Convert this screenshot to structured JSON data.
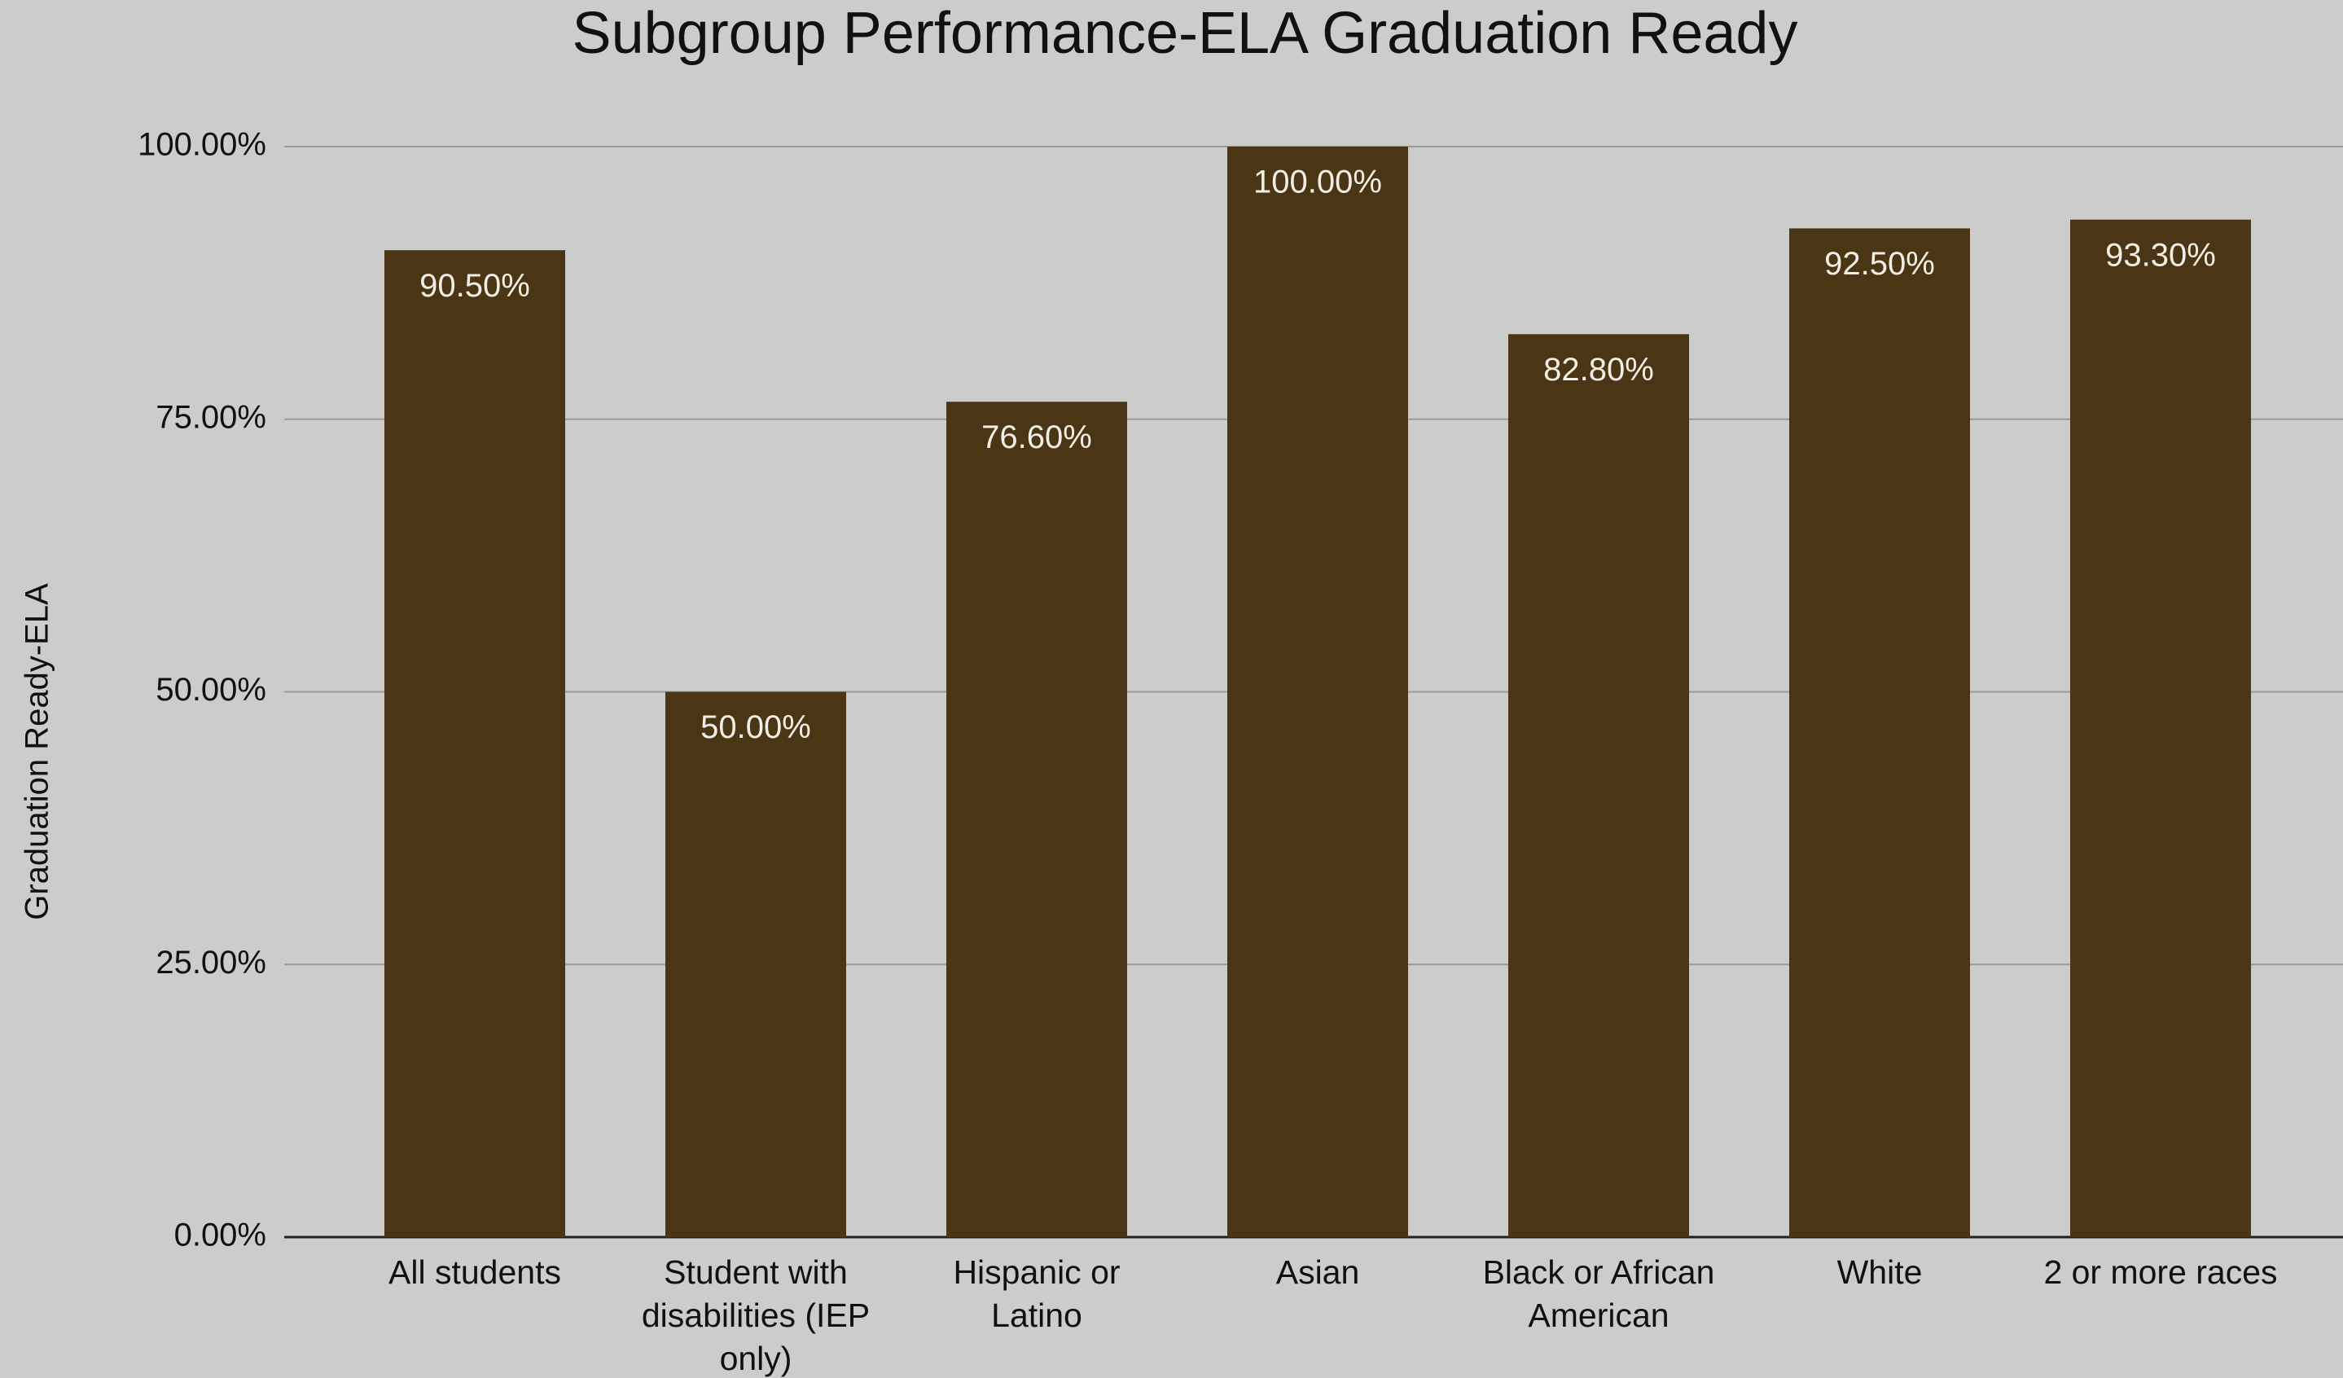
{
  "chart_data": {
    "type": "bar",
    "title": "Subgroup Performance-ELA Graduation Ready",
    "y_label": "Graduation Ready-ELA",
    "categories": [
      "All students",
      "Student with disabilities (IEP only)",
      "Hispanic or Latino",
      "Asian",
      "Black or African American",
      "White",
      "2 or more races"
    ],
    "values": [
      90.5,
      50,
      76.6,
      100,
      82.8,
      92.5,
      93.3
    ],
    "value_labels": [
      "90.50%",
      "50.00%",
      "76.60%",
      "100.00%",
      "82.80%",
      "92.50%",
      "93.30%"
    ],
    "color": "#4a3514",
    "ylim": [
      0,
      100
    ],
    "yticks": [
      {
        "value": 0,
        "label": "0.00%"
      },
      {
        "value": 25,
        "label": "25.00%"
      },
      {
        "value": 50,
        "label": "50.00%"
      },
      {
        "value": 75,
        "label": "75.00%"
      },
      {
        "value": 100,
        "label": "100.00%"
      }
    ],
    "grid": true
  }
}
